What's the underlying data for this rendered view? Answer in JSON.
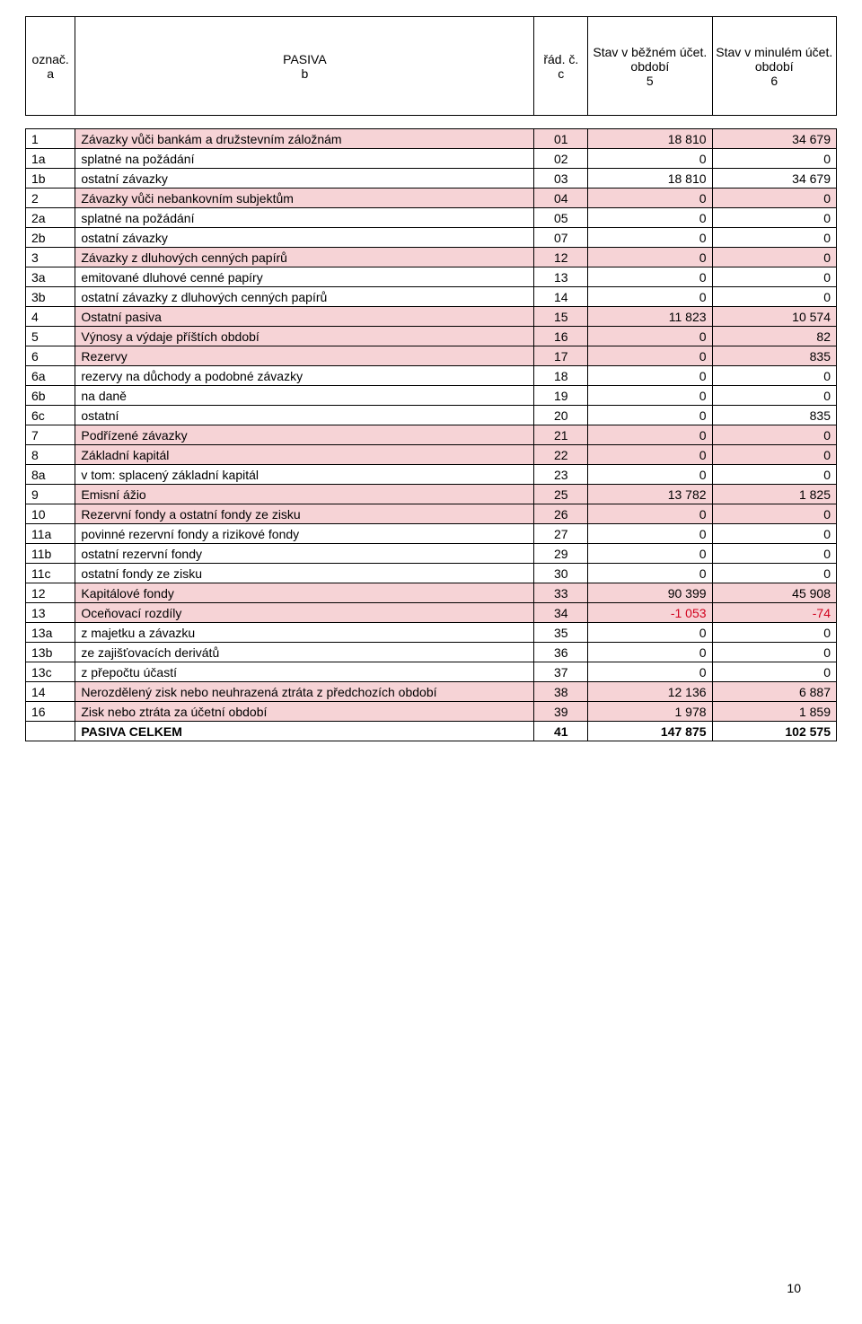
{
  "header": {
    "col_a_line1": "označ.",
    "col_a_line2": "a",
    "col_b_line1": "PASIVA",
    "col_b_line2": "b",
    "col_c_line1": "řád.  č.",
    "col_c_line2": "c",
    "col_5_line1": "Stav v běžném účet. období",
    "col_5_line2": "5",
    "col_6_line1": "Stav v minulém účet. období",
    "col_6_line2": "6"
  },
  "highlight_color": "#f6d3d6",
  "negative_color": "#d1001c",
  "rows": [
    {
      "a": "1",
      "b": "Závazky vůči bankám a družstevním záložnám",
      "c": "01",
      "v5": "18 810",
      "v6": "34 679",
      "hl": true
    },
    {
      "a": "1a",
      "b": "splatné na požádání",
      "c": "02",
      "v5": "0",
      "v6": "0",
      "hl": false
    },
    {
      "a": "1b",
      "b": "ostatní závazky",
      "c": "03",
      "v5": "18 810",
      "v6": "34 679",
      "hl": false
    },
    {
      "a": "2",
      "b": "Závazky vůči nebankovním subjektům",
      "c": "04",
      "v5": "0",
      "v6": "0",
      "hl": true
    },
    {
      "a": "2a",
      "b": "splatné na požádání",
      "c": "05",
      "v5": "0",
      "v6": "0",
      "hl": false
    },
    {
      "a": "2b",
      "b": "ostatní závazky",
      "c": "07",
      "v5": "0",
      "v6": "0",
      "hl": false
    },
    {
      "a": "3",
      "b": "Závazky z dluhových cenných papírů",
      "c": "12",
      "v5": "0",
      "v6": "0",
      "hl": true
    },
    {
      "a": "3a",
      "b": "emitované dluhové cenné papíry",
      "c": "13",
      "v5": "0",
      "v6": "0",
      "hl": false
    },
    {
      "a": "3b",
      "b": "ostatní závazky z dluhových cenných papírů",
      "c": "14",
      "v5": "0",
      "v6": "0",
      "hl": false
    },
    {
      "a": "4",
      "b": "Ostatní pasiva",
      "c": "15",
      "v5": "11 823",
      "v6": "10 574",
      "hl": true
    },
    {
      "a": "5",
      "b": "Výnosy a výdaje příštích období",
      "c": "16",
      "v5": "0",
      "v6": "82",
      "hl": true
    },
    {
      "a": "6",
      "b": "Rezervy",
      "c": "17",
      "v5": "0",
      "v6": "835",
      "hl": true
    },
    {
      "a": "6a",
      "b": "rezervy na důchody a podobné závazky",
      "c": "18",
      "v5": "0",
      "v6": "0",
      "hl": false
    },
    {
      "a": "6b",
      "b": "na daně",
      "c": "19",
      "v5": "0",
      "v6": "0",
      "hl": false
    },
    {
      "a": "6c",
      "b": "ostatní",
      "c": "20",
      "v5": "0",
      "v6": "835",
      "hl": false
    },
    {
      "a": "7",
      "b": "Podřízené závazky",
      "c": "21",
      "v5": "0",
      "v6": "0",
      "hl": true
    },
    {
      "a": "8",
      "b": "Základní kapitál",
      "c": "22",
      "v5": "0",
      "v6": "0",
      "hl": true
    },
    {
      "a": "8a",
      "b": "v tom: splacený základní kapitál",
      "c": "23",
      "v5": "0",
      "v6": "0",
      "hl": false
    },
    {
      "a": "9",
      "b": "Emisní ážio",
      "c": "25",
      "v5": "13 782",
      "v6": "1 825",
      "hl": true
    },
    {
      "a": "10",
      "b": "Rezervní fondy a ostatní fondy ze zisku",
      "c": "26",
      "v5": "0",
      "v6": "0",
      "hl": true
    },
    {
      "a": "11a",
      "b": "povinné rezervní fondy a rizikové fondy",
      "c": "27",
      "v5": "0",
      "v6": "0",
      "hl": false
    },
    {
      "a": "11b",
      "b": "ostatní rezervní fondy",
      "c": "29",
      "v5": "0",
      "v6": "0",
      "hl": false
    },
    {
      "a": "11c",
      "b": "ostatní fondy ze zisku",
      "c": "30",
      "v5": "0",
      "v6": "0",
      "hl": false
    },
    {
      "a": "12",
      "b": "Kapitálové fondy",
      "c": "33",
      "v5": "90 399",
      "v6": "45 908",
      "hl": true
    },
    {
      "a": "13",
      "b": "Oceňovací rozdíly",
      "c": "34",
      "v5": "-1 053",
      "v6": "-74",
      "hl": true,
      "neg": true
    },
    {
      "a": "13a",
      "b": "z majetku a závazku",
      "c": "35",
      "v5": "0",
      "v6": "0",
      "hl": false
    },
    {
      "a": "13b",
      "b": "ze zajišťovacích derivátů",
      "c": "36",
      "v5": "0",
      "v6": "0",
      "hl": false
    },
    {
      "a": "13c",
      "b": "z přepočtu účastí",
      "c": "37",
      "v5": "0",
      "v6": "0",
      "hl": false
    },
    {
      "a": "14",
      "b": "Nerozdělený zisk nebo neuhrazená ztráta z předchozích období",
      "c": "38",
      "v5": "12 136",
      "v6": "6 887",
      "hl": true
    },
    {
      "a": "16",
      "b": "Zisk nebo ztráta za účetní období",
      "c": "39",
      "v5": "1 978",
      "v6": "1 859",
      "hl": true
    },
    {
      "a": "",
      "b": "PASIVA CELKEM",
      "c": "41",
      "v5": "147 875",
      "v6": "102 575",
      "hl": false,
      "bold": true
    }
  ],
  "page_number": "10"
}
